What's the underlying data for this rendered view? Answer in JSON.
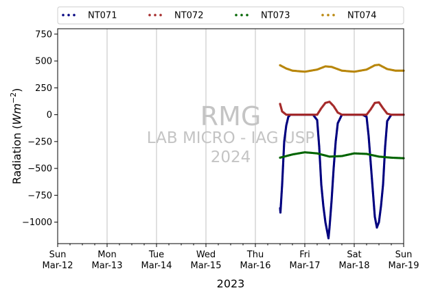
{
  "chart_data": {
    "type": "scatter",
    "xlabel": "2023",
    "ylabel_main": "Radiation (",
    "ylabel_unit": "Wm",
    "ylabel_exp": "−2",
    "ylabel_close": ")",
    "xlim": [
      "2023-03-12",
      "2023-03-19"
    ],
    "ylim": [
      -1200,
      800
    ],
    "yticks": [
      750,
      500,
      250,
      0,
      -250,
      -500,
      -750,
      -1000
    ],
    "ytick_labels": [
      "750",
      "500",
      "250",
      "0",
      "−250",
      "−500",
      "−750",
      "−1000"
    ],
    "xticks": [
      {
        "day": "Sun",
        "date": "Mar-12"
      },
      {
        "day": "Mon",
        "date": "Mar-13"
      },
      {
        "day": "Tue",
        "date": "Mar-14"
      },
      {
        "day": "Wed",
        "date": "Mar-15"
      },
      {
        "day": "Thu",
        "date": "Mar-16"
      },
      {
        "day": "Fri",
        "date": "Mar-17"
      },
      {
        "day": "Sat",
        "date": "Mar-18"
      },
      {
        "day": "Sun",
        "date": "Mar-19"
      }
    ],
    "grid": "vertical lines at major ticks",
    "legend_position": "top, above plot, 4 columns",
    "watermark": [
      "RMG",
      "LAB MICRO - IAG USP",
      "2024"
    ],
    "series": [
      {
        "name": "NT071",
        "color": "#00007f",
        "points": [
          [
            "2023-03-16 12:00",
            -870
          ],
          [
            "2023-03-16 12:10",
            -910
          ],
          [
            "2023-03-16 13:00",
            -650
          ],
          [
            "2023-03-16 13:30",
            -450
          ],
          [
            "2023-03-16 14:00",
            -250
          ],
          [
            "2023-03-16 15:00",
            -100
          ],
          [
            "2023-03-16 16:00",
            -20
          ],
          [
            "2023-03-16 17:00",
            0
          ],
          [
            "2023-03-16 20:00",
            0
          ],
          [
            "2023-03-17 00:00",
            0
          ],
          [
            "2023-03-17 04:00",
            0
          ],
          [
            "2023-03-17 06:00",
            -50
          ],
          [
            "2023-03-17 07:00",
            -300
          ],
          [
            "2023-03-17 08:00",
            -650
          ],
          [
            "2023-03-17 09:00",
            -850
          ],
          [
            "2023-03-17 10:00",
            -1000
          ],
          [
            "2023-03-17 11:00",
            -1100
          ],
          [
            "2023-03-17 11:30",
            -1150
          ],
          [
            "2023-03-17 12:00",
            -1050
          ],
          [
            "2023-03-17 13:00",
            -800
          ],
          [
            "2023-03-17 14:00",
            -500
          ],
          [
            "2023-03-17 15:00",
            -250
          ],
          [
            "2023-03-17 16:00",
            -80
          ],
          [
            "2023-03-17 18:00",
            0
          ],
          [
            "2023-03-18 00:00",
            0
          ],
          [
            "2023-03-18 04:00",
            0
          ],
          [
            "2023-03-18 06:00",
            -20
          ],
          [
            "2023-03-18 07:00",
            -200
          ],
          [
            "2023-03-18 08:00",
            -450
          ],
          [
            "2023-03-18 09:00",
            -700
          ],
          [
            "2023-03-18 10:00",
            -950
          ],
          [
            "2023-03-18 11:00",
            -1050
          ],
          [
            "2023-03-18 12:00",
            -1000
          ],
          [
            "2023-03-18 13:00",
            -850
          ],
          [
            "2023-03-18 14:00",
            -650
          ],
          [
            "2023-03-18 15:00",
            -300
          ],
          [
            "2023-03-18 16:00",
            -60
          ],
          [
            "2023-03-18 18:00",
            0
          ],
          [
            "2023-03-19 00:00",
            0
          ]
        ]
      },
      {
        "name": "NT072",
        "color": "#a52a2a",
        "points": [
          [
            "2023-03-16 12:00",
            100
          ],
          [
            "2023-03-16 13:00",
            30
          ],
          [
            "2023-03-16 15:00",
            0
          ],
          [
            "2023-03-17 06:00",
            0
          ],
          [
            "2023-03-17 08:00",
            60
          ],
          [
            "2023-03-17 10:00",
            110
          ],
          [
            "2023-03-17 12:00",
            120
          ],
          [
            "2023-03-17 14:00",
            80
          ],
          [
            "2023-03-17 16:00",
            20
          ],
          [
            "2023-03-17 18:00",
            0
          ],
          [
            "2023-03-18 06:00",
            0
          ],
          [
            "2023-03-18 08:00",
            50
          ],
          [
            "2023-03-18 10:00",
            110
          ],
          [
            "2023-03-18 12:00",
            115
          ],
          [
            "2023-03-18 14:00",
            60
          ],
          [
            "2023-03-18 16:00",
            10
          ],
          [
            "2023-03-18 18:00",
            0
          ],
          [
            "2023-03-19 00:00",
            0
          ]
        ]
      },
      {
        "name": "NT073",
        "color": "#006400",
        "points": [
          [
            "2023-03-16 12:00",
            -400
          ],
          [
            "2023-03-16 18:00",
            -370
          ],
          [
            "2023-03-17 00:00",
            -350
          ],
          [
            "2023-03-17 06:00",
            -360
          ],
          [
            "2023-03-17 12:00",
            -390
          ],
          [
            "2023-03-17 18:00",
            -385
          ],
          [
            "2023-03-18 00:00",
            -360
          ],
          [
            "2023-03-18 06:00",
            -365
          ],
          [
            "2023-03-18 12:00",
            -390
          ],
          [
            "2023-03-18 18:00",
            -400
          ],
          [
            "2023-03-19 00:00",
            -405
          ]
        ]
      },
      {
        "name": "NT074",
        "color": "#b8860b",
        "points": [
          [
            "2023-03-16 12:00",
            460
          ],
          [
            "2023-03-16 15:00",
            430
          ],
          [
            "2023-03-16 18:00",
            410
          ],
          [
            "2023-03-17 00:00",
            400
          ],
          [
            "2023-03-17 06:00",
            420
          ],
          [
            "2023-03-17 10:00",
            450
          ],
          [
            "2023-03-17 13:00",
            445
          ],
          [
            "2023-03-17 18:00",
            410
          ],
          [
            "2023-03-18 00:00",
            400
          ],
          [
            "2023-03-18 06:00",
            420
          ],
          [
            "2023-03-18 10:00",
            460
          ],
          [
            "2023-03-18 12:00",
            465
          ],
          [
            "2023-03-18 16:00",
            425
          ],
          [
            "2023-03-18 20:00",
            410
          ],
          [
            "2023-03-19 00:00",
            410
          ]
        ]
      }
    ]
  }
}
